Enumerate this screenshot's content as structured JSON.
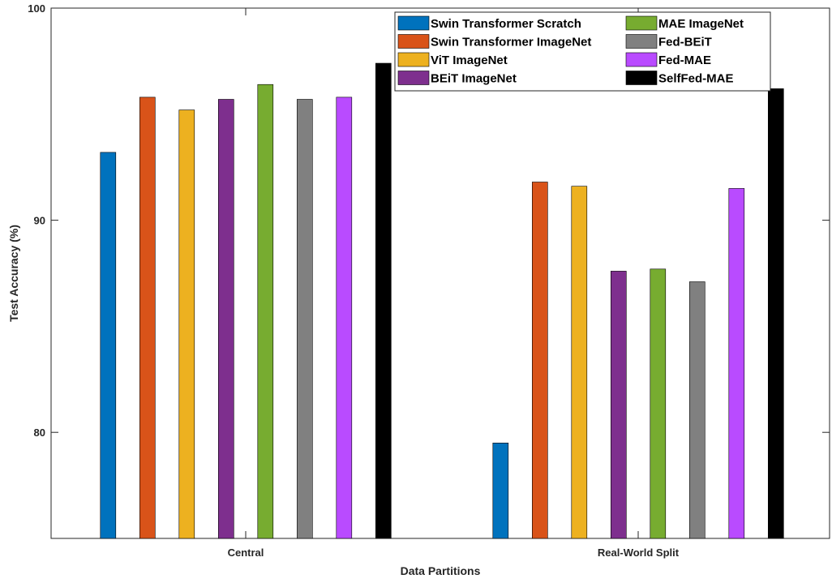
{
  "chart_data": {
    "type": "bar",
    "title": "",
    "xlabel": "Data Partitions",
    "ylabel": "Test Accuracy (%)",
    "categories": [
      "Central",
      "Real-World Split"
    ],
    "ylim": [
      75,
      100
    ],
    "yticks": [
      80,
      90,
      100
    ],
    "grid": false,
    "legend_position": "top-right",
    "legend_columns": 2,
    "series": [
      {
        "name": "Swin Transformer Scratch",
        "color": "#0072BD",
        "values": [
          93.2,
          79.5
        ]
      },
      {
        "name": "Swin Transformer ImageNet",
        "color": "#D95319",
        "values": [
          95.8,
          91.8
        ]
      },
      {
        "name": "ViT ImageNet",
        "color": "#EDB120",
        "values": [
          95.2,
          91.6
        ]
      },
      {
        "name": "BEiT ImageNet",
        "color": "#7E2F8E",
        "values": [
          95.7,
          87.6
        ]
      },
      {
        "name": "MAE ImageNet",
        "color": "#77AC30",
        "values": [
          96.4,
          87.7
        ]
      },
      {
        "name": "Fed-BEiT",
        "color": "#808080",
        "values": [
          95.7,
          87.1
        ]
      },
      {
        "name": "Fed-MAE",
        "color": "#B94BFF",
        "values": [
          95.8,
          91.5
        ]
      },
      {
        "name": "SelfFed-MAE",
        "color": "#000000",
        "values": [
          97.4,
          96.2
        ]
      }
    ]
  }
}
